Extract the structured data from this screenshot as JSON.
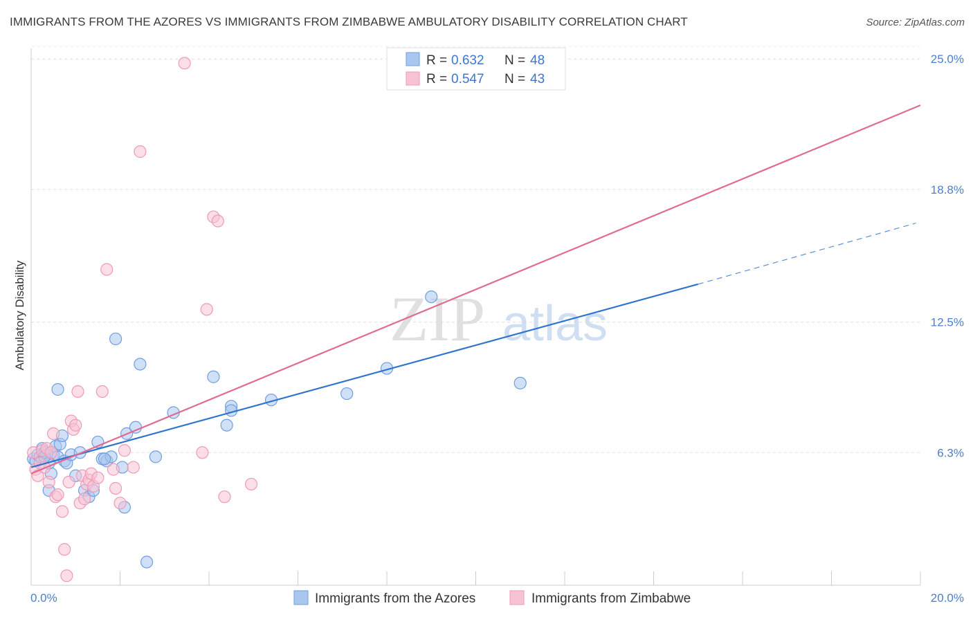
{
  "chart_data": {
    "type": "scatter",
    "title": "IMMIGRANTS FROM THE AZORES VS IMMIGRANTS FROM ZIMBABWE AMBULATORY DISABILITY CORRELATION CHART",
    "source": "Source: ZipAtlas.com",
    "ylabel": "Ambulatory Disability",
    "xlabel": "",
    "xlim": [
      0,
      20
    ],
    "ylim": [
      0,
      25.5
    ],
    "x_tick_labels": [
      "0.0%",
      "20.0%"
    ],
    "y_ticks": [
      {
        "value": 6.3,
        "label": "6.3%"
      },
      {
        "value": 12.5,
        "label": "12.5%"
      },
      {
        "value": 18.8,
        "label": "18.8%"
      },
      {
        "value": 25.0,
        "label": "25.0%"
      }
    ],
    "watermark": {
      "zip": "ZIP",
      "atlas": "atlas"
    },
    "legend": {
      "r_label": "R = ",
      "n_label": "N = ",
      "entries": [
        {
          "r": "0.632",
          "n": "48"
        },
        {
          "r": "0.547",
          "n": "43"
        }
      ]
    },
    "series": [
      {
        "name": "Immigrants from the Azores",
        "color": "#6f9ee0",
        "fill": "#a9c6ef",
        "line_color": "#2f74cc",
        "trend": {
          "x0": 0.0,
          "y0": 5.6,
          "x1": 15.0,
          "y1": 14.3,
          "dash_x1": 19.9,
          "dash_y1": 17.2
        },
        "x": [
          0.05,
          0.1,
          0.15,
          0.2,
          0.25,
          0.3,
          0.35,
          0.4,
          0.45,
          0.5,
          0.55,
          0.6,
          0.65,
          0.7,
          0.75,
          0.8,
          0.9,
          1.0,
          1.1,
          1.2,
          1.3,
          1.4,
          1.5,
          1.6,
          1.7,
          1.8,
          1.9,
          2.05,
          2.1,
          2.15,
          2.35,
          2.45,
          2.6,
          2.8,
          3.2,
          4.1,
          4.4,
          4.5,
          4.5,
          5.4,
          7.1,
          8.0,
          9.0,
          11.0,
          0.4,
          1.65,
          0.6,
          0.3
        ],
        "y": [
          6.0,
          5.9,
          6.2,
          6.1,
          6.5,
          6.3,
          6.2,
          4.5,
          5.3,
          6.2,
          6.6,
          6.1,
          6.7,
          7.1,
          5.9,
          5.8,
          6.2,
          5.2,
          6.3,
          4.5,
          4.2,
          4.5,
          6.8,
          6.0,
          5.9,
          6.1,
          11.7,
          5.6,
          3.7,
          7.2,
          7.5,
          10.5,
          1.1,
          6.1,
          8.2,
          9.9,
          7.6,
          8.5,
          8.3,
          8.8,
          9.1,
          10.3,
          13.7,
          9.6,
          5.8,
          6.0,
          9.3,
          6.1
        ]
      },
      {
        "name": "Immigrants from Zimbabwe",
        "color": "#ee9ab7",
        "fill": "#f7c3d4",
        "line_color": "#e06a92",
        "trend": {
          "x0": 0.0,
          "y0": 5.3,
          "x1": 20.0,
          "y1": 22.8
        },
        "x": [
          0.05,
          0.1,
          0.15,
          0.2,
          0.25,
          0.3,
          0.35,
          0.4,
          0.45,
          0.5,
          0.55,
          0.6,
          0.7,
          0.75,
          0.8,
          0.85,
          0.9,
          0.95,
          1.0,
          1.05,
          1.1,
          1.15,
          1.2,
          1.25,
          1.3,
          1.35,
          1.4,
          1.5,
          1.6,
          1.7,
          1.85,
          1.9,
          2.0,
          2.1,
          2.3,
          2.45,
          3.45,
          3.85,
          3.95,
          4.1,
          4.2,
          4.35,
          4.95
        ],
        "y": [
          6.3,
          5.5,
          5.2,
          5.8,
          6.4,
          5.6,
          6.5,
          4.9,
          6.3,
          7.2,
          4.2,
          4.3,
          3.5,
          1.7,
          0.45,
          4.9,
          7.8,
          7.4,
          7.6,
          9.2,
          3.9,
          5.2,
          4.1,
          4.8,
          5.0,
          5.3,
          4.7,
          5.1,
          9.2,
          15.0,
          5.5,
          4.6,
          3.9,
          6.4,
          5.6,
          20.6,
          24.8,
          6.3,
          13.1,
          17.5,
          17.3,
          4.2,
          4.8
        ]
      }
    ]
  }
}
